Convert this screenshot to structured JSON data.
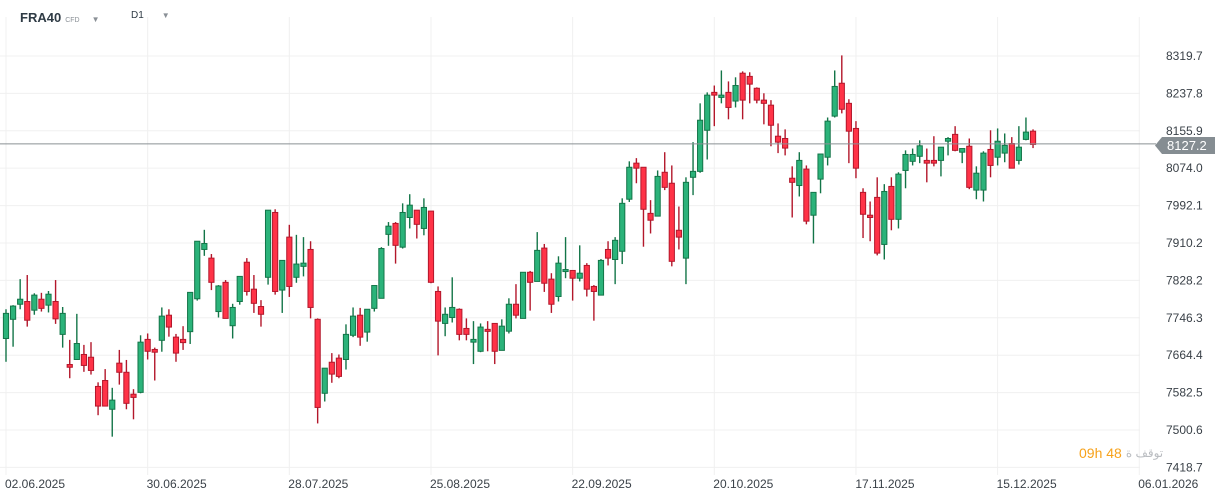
{
  "header": {
    "symbol": "FRA40",
    "instrument_type": "CFD",
    "timeframe": "D1"
  },
  "current_price": {
    "label": "8127.2",
    "value": 8127.2,
    "color": "#858d92"
  },
  "countdown": {
    "time": "09h 48",
    "label": "توقف ة"
  },
  "colors": {
    "up_fill": "#2bb37a",
    "up_border": "#137548",
    "down_fill": "#ff3347",
    "down_border": "#b3172b",
    "grid": "#f0f0f0"
  },
  "chart_data": {
    "type": "candlestick",
    "ylim": [
      7418.7,
      8319.7
    ],
    "y_ticks": [
      "8319.7",
      "8237.8",
      "8155.9",
      "8074.0",
      "7992.1",
      "7910.2",
      "7828.2",
      "7746.3",
      "7664.4",
      "7582.5",
      "7500.6",
      "7418.7"
    ],
    "x_ticks": [
      "02.06.2025",
      "30.06.2025",
      "28.07.2025",
      "25.08.2025",
      "22.09.2025",
      "20.10.2025",
      "17.11.2025",
      "15.12.2025",
      "06.01.2026"
    ],
    "grid": true,
    "ohlc_fields": [
      "open",
      "high",
      "low",
      "close"
    ],
    "ohlc": [
      [
        7701,
        7765,
        7650,
        7756
      ],
      [
        7743,
        7774,
        7683,
        7772
      ],
      [
        7776,
        7831,
        7765,
        7787
      ],
      [
        7782,
        7840,
        7727,
        7741
      ],
      [
        7763,
        7800,
        7753,
        7796
      ],
      [
        7787,
        7801,
        7760,
        7767
      ],
      [
        7774,
        7805,
        7758,
        7798
      ],
      [
        7782,
        7829,
        7733,
        7744
      ],
      [
        7710,
        7770,
        7681,
        7756
      ],
      [
        7644,
        7698,
        7614,
        7638
      ],
      [
        7655,
        7755,
        7655,
        7690
      ],
      [
        7666,
        7687,
        7628,
        7642
      ],
      [
        7660,
        7693,
        7622,
        7631
      ],
      [
        7596,
        7605,
        7533,
        7553
      ],
      [
        7609,
        7634,
        7553,
        7553
      ],
      [
        7546,
        7593,
        7486,
        7566
      ],
      [
        7647,
        7676,
        7600,
        7627
      ],
      [
        7627,
        7654,
        7546,
        7559
      ],
      [
        7579,
        7590,
        7524,
        7572
      ],
      [
        7583,
        7708,
        7581,
        7693
      ],
      [
        7699,
        7712,
        7655,
        7673
      ],
      [
        7677,
        7681,
        7609,
        7671
      ],
      [
        7697,
        7769,
        7672,
        7750
      ],
      [
        7752,
        7765,
        7705,
        7726
      ],
      [
        7704,
        7711,
        7650,
        7669
      ],
      [
        7699,
        7728,
        7676,
        7692
      ],
      [
        7716,
        7802,
        7689,
        7802
      ],
      [
        7788,
        7914,
        7784,
        7914
      ],
      [
        7896,
        7939,
        7882,
        7909
      ],
      [
        7877,
        7886,
        7807,
        7824
      ],
      [
        7760,
        7818,
        7747,
        7816
      ],
      [
        7824,
        7829,
        7745,
        7745
      ],
      [
        7729,
        7777,
        7701,
        7769
      ],
      [
        7782,
        7837,
        7775,
        7837
      ],
      [
        7868,
        7877,
        7795,
        7804
      ],
      [
        7809,
        7840,
        7757,
        7778
      ],
      [
        7771,
        7785,
        7727,
        7754
      ],
      [
        7835,
        7982,
        7819,
        7982
      ],
      [
        7977,
        7984,
        7797,
        7804
      ],
      [
        7807,
        7872,
        7757,
        7872
      ],
      [
        7923,
        7950,
        7792,
        7815
      ],
      [
        7835,
        7928,
        7823,
        7864
      ],
      [
        7859,
        7923,
        7837,
        7866
      ],
      [
        7896,
        7914,
        7745,
        7769
      ],
      [
        7743,
        7745,
        7515,
        7550
      ],
      [
        7581,
        7636,
        7563,
        7636
      ],
      [
        7649,
        7669,
        7604,
        7623
      ],
      [
        7658,
        7666,
        7614,
        7618
      ],
      [
        7655,
        7732,
        7633,
        7710
      ],
      [
        7708,
        7769,
        7704,
        7750
      ],
      [
        7752,
        7768,
        7685,
        7704
      ],
      [
        7715,
        7765,
        7694,
        7765
      ],
      [
        7767,
        7817,
        7760,
        7817
      ],
      [
        7789,
        7901,
        7789,
        7898
      ],
      [
        7929,
        7956,
        7904,
        7947
      ],
      [
        7953,
        7956,
        7865,
        7905
      ],
      [
        7901,
        7997,
        7898,
        7977
      ],
      [
        7966,
        8017,
        7942,
        7993
      ],
      [
        7982,
        7982,
        7920,
        7951
      ],
      [
        7942,
        8008,
        7927,
        7988
      ],
      [
        7980,
        7980,
        7822,
        7824
      ],
      [
        7804,
        7815,
        7664,
        7739
      ],
      [
        7734,
        7769,
        7706,
        7754
      ],
      [
        7747,
        7835,
        7736,
        7769
      ],
      [
        7765,
        7767,
        7697,
        7710
      ],
      [
        7723,
        7745,
        7697,
        7710
      ],
      [
        7693,
        7739,
        7645,
        7699
      ],
      [
        7673,
        7734,
        7671,
        7726
      ],
      [
        7721,
        7739,
        7673,
        7717
      ],
      [
        7734,
        7734,
        7645,
        7673
      ],
      [
        7675,
        7743,
        7675,
        7728
      ],
      [
        7717,
        7789,
        7712,
        7776
      ],
      [
        7776,
        7820,
        7745,
        7752
      ],
      [
        7745,
        7846,
        7745,
        7846
      ],
      [
        7846,
        7849,
        7762,
        7824
      ],
      [
        7826,
        7934,
        7826,
        7894
      ],
      [
        7899,
        7908,
        7803,
        7822
      ],
      [
        7831,
        7844,
        7757,
        7776
      ],
      [
        7793,
        7881,
        7782,
        7866
      ],
      [
        7848,
        7923,
        7833,
        7852
      ],
      [
        7850,
        7850,
        7784,
        7833
      ],
      [
        7833,
        7905,
        7826,
        7844
      ],
      [
        7861,
        7866,
        7793,
        7809
      ],
      [
        7815,
        7818,
        7740,
        7804
      ],
      [
        7796,
        7875,
        7796,
        7872
      ],
      [
        7896,
        7914,
        7861,
        7877
      ],
      [
        7874,
        7923,
        7820,
        7916
      ],
      [
        7892,
        8008,
        7864,
        7997
      ],
      [
        8006,
        8089,
        8000,
        8076
      ],
      [
        8085,
        8096,
        8041,
        8074
      ],
      [
        8076,
        8076,
        7902,
        7984
      ],
      [
        7975,
        8004,
        7931,
        7960
      ],
      [
        7969,
        8069,
        7969,
        8056
      ],
      [
        8065,
        8109,
        8026,
        8032
      ],
      [
        8041,
        8080,
        7859,
        7870
      ],
      [
        7938,
        7990,
        7896,
        7923
      ],
      [
        7877,
        8054,
        7820,
        8043
      ],
      [
        8054,
        8131,
        8015,
        8067
      ],
      [
        8067,
        8216,
        8064,
        8179
      ],
      [
        8157,
        8240,
        8093,
        8234
      ],
      [
        8240,
        8255,
        8166,
        8234
      ],
      [
        8229,
        8288,
        8216,
        8234
      ],
      [
        8240,
        8264,
        8181,
        8207
      ],
      [
        8221,
        8273,
        8207,
        8255
      ],
      [
        8282,
        8286,
        8181,
        8223
      ],
      [
        8275,
        8284,
        8216,
        8258
      ],
      [
        8249,
        8251,
        8216,
        8223
      ],
      [
        8223,
        8238,
        8170,
        8216
      ],
      [
        8212,
        8223,
        8122,
        8168
      ],
      [
        8144,
        8172,
        8107,
        8131
      ],
      [
        8139,
        8159,
        8102,
        8118
      ],
      [
        8052,
        8078,
        7966,
        8043
      ],
      [
        8036,
        8109,
        8012,
        8091
      ],
      [
        8072,
        8080,
        7951,
        7958
      ],
      [
        7971,
        8021,
        7909,
        8021
      ],
      [
        8050,
        8105,
        8019,
        8105
      ],
      [
        8098,
        8185,
        8080,
        8177
      ],
      [
        8188,
        8288,
        8185,
        8253
      ],
      [
        8260,
        8321,
        8194,
        8203
      ],
      [
        8216,
        8225,
        8085,
        8155
      ],
      [
        8161,
        8177,
        8052,
        8074
      ],
      [
        8021,
        8030,
        7921,
        7973
      ],
      [
        7971,
        8001,
        7914,
        7966
      ],
      [
        8010,
        8054,
        7883,
        7888
      ],
      [
        7907,
        8039,
        7874,
        8023
      ],
      [
        8034,
        8054,
        7938,
        7962
      ],
      [
        7962,
        8065,
        7942,
        8061
      ],
      [
        8069,
        8113,
        8030,
        8104
      ],
      [
        8089,
        8117,
        8080,
        8104
      ],
      [
        8100,
        8135,
        8085,
        8123
      ],
      [
        8091,
        8117,
        8043,
        8085
      ],
      [
        8091,
        8144,
        8078,
        8085
      ],
      [
        8091,
        8120,
        8056,
        8120
      ],
      [
        8133,
        8142,
        8102,
        8139
      ],
      [
        8148,
        8166,
        8111,
        8113
      ],
      [
        8109,
        8117,
        8085,
        8117
      ],
      [
        8122,
        8139,
        8028,
        8032
      ],
      [
        8026,
        8078,
        8006,
        8063
      ],
      [
        8026,
        8111,
        8001,
        8107
      ],
      [
        8115,
        8157,
        8054,
        8080
      ],
      [
        8098,
        8161,
        8080,
        8133
      ],
      [
        8107,
        8150,
        8087,
        8124
      ],
      [
        8128,
        8142,
        8074,
        8074
      ],
      [
        8091,
        8166,
        8082,
        8120
      ],
      [
        8137,
        8185,
        8135,
        8153
      ],
      [
        8155,
        8159,
        8118,
        8126
      ]
    ]
  }
}
